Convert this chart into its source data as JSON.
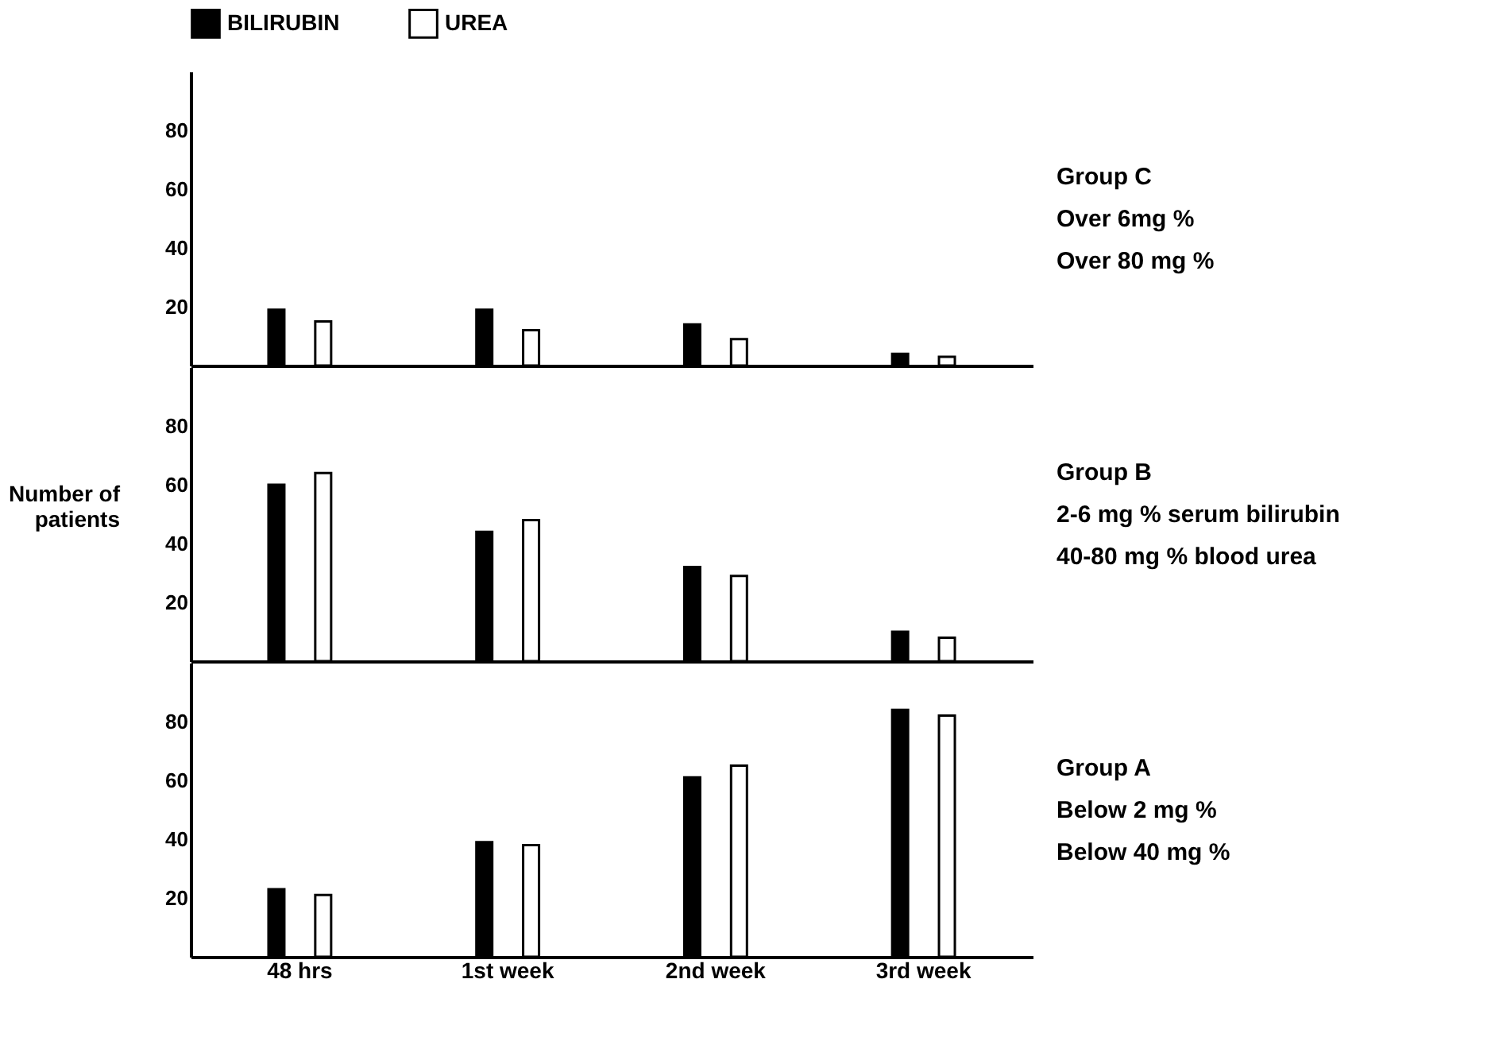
{
  "chart_data": [
    {
      "type": "bar",
      "categories": [
        null,
        null,
        null,
        null
      ],
      "ylim": [
        0,
        100
      ],
      "yticks": [
        20,
        40,
        60,
        80
      ],
      "legend": "top",
      "grid": false,
      "tick_labels": "y",
      "series": [
        {
          "name": "BILIRUBIN",
          "color": "#000000",
          "values": [
            19,
            19,
            14,
            4
          ]
        },
        {
          "name": "UREA",
          "color": "#ffffff",
          "values": [
            15,
            12,
            9,
            3
          ]
        }
      ],
      "annotations": [
        "Group C",
        "Over 6mg %",
        "Over 80 mg %"
      ]
    },
    {
      "type": "bar",
      "categories": [
        null,
        null,
        null,
        null
      ],
      "ylim": [
        0,
        100
      ],
      "yticks": [
        20,
        40,
        60,
        80
      ],
      "grid": false,
      "tick_labels": "y",
      "ylabel": "Number of patients",
      "series": [
        {
          "name": "BILIRUBIN",
          "color": "#000000",
          "values": [
            60,
            44,
            32,
            10
          ]
        },
        {
          "name": "UREA",
          "color": "#ffffff",
          "values": [
            64,
            48,
            29,
            8
          ]
        }
      ],
      "annotations": [
        "Group B",
        "2-6 mg % serum bilirubin",
        "40-80 mg % blood urea"
      ]
    },
    {
      "type": "bar",
      "categories": [
        "48 hrs",
        "1st week",
        "2nd week",
        "3rd week"
      ],
      "ylim": [
        0,
        100
      ],
      "yticks": [
        20,
        40,
        60,
        80
      ],
      "grid": false,
      "series": [
        {
          "name": "BILIRUBIN",
          "color": "#000000",
          "values": [
            23,
            39,
            61,
            84
          ]
        },
        {
          "name": "UREA",
          "color": "#ffffff",
          "values": [
            21,
            38,
            65,
            82
          ]
        }
      ],
      "annotations": [
        "Group A",
        "Below 2 mg %",
        "Below 40 mg %"
      ]
    }
  ]
}
